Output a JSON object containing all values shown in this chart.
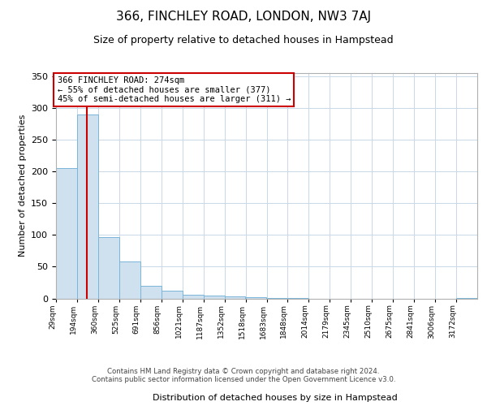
{
  "title": "366, FINCHLEY ROAD, LONDON, NW3 7AJ",
  "subtitle": "Size of property relative to detached houses in Hampstead",
  "xlabel": "Distribution of detached houses by size in Hampstead",
  "ylabel": "Number of detached properties",
  "bar_edges": [
    29,
    194,
    360,
    525,
    691,
    856,
    1021,
    1187,
    1352,
    1518,
    1683,
    1848,
    2014,
    2179,
    2345,
    2510,
    2675,
    2841,
    3006,
    3172,
    3337
  ],
  "bar_heights": [
    205,
    290,
    97,
    58,
    20,
    12,
    6,
    5,
    3,
    2,
    1,
    1,
    0,
    0,
    0,
    0,
    0,
    0,
    0,
    1
  ],
  "bar_color": "#cfe0ee",
  "bar_edgecolor": "#7ab5d8",
  "property_size": 274,
  "red_line_color": "#cc0000",
  "annotation_line1": "366 FINCHLEY ROAD: 274sqm",
  "annotation_line2": "← 55% of detached houses are smaller (377)",
  "annotation_line3": "45% of semi-detached houses are larger (311) →",
  "annotation_box_color": "#ffffff",
  "annotation_box_edgecolor": "#cc0000",
  "ylim": [
    0,
    355
  ],
  "yticks": [
    0,
    50,
    100,
    150,
    200,
    250,
    300,
    350
  ],
  "footer_text": "Contains HM Land Registry data © Crown copyright and database right 2024.\nContains public sector information licensed under the Open Government Licence v3.0.",
  "background_color": "#ffffff",
  "grid_color": "#c8d8e8"
}
